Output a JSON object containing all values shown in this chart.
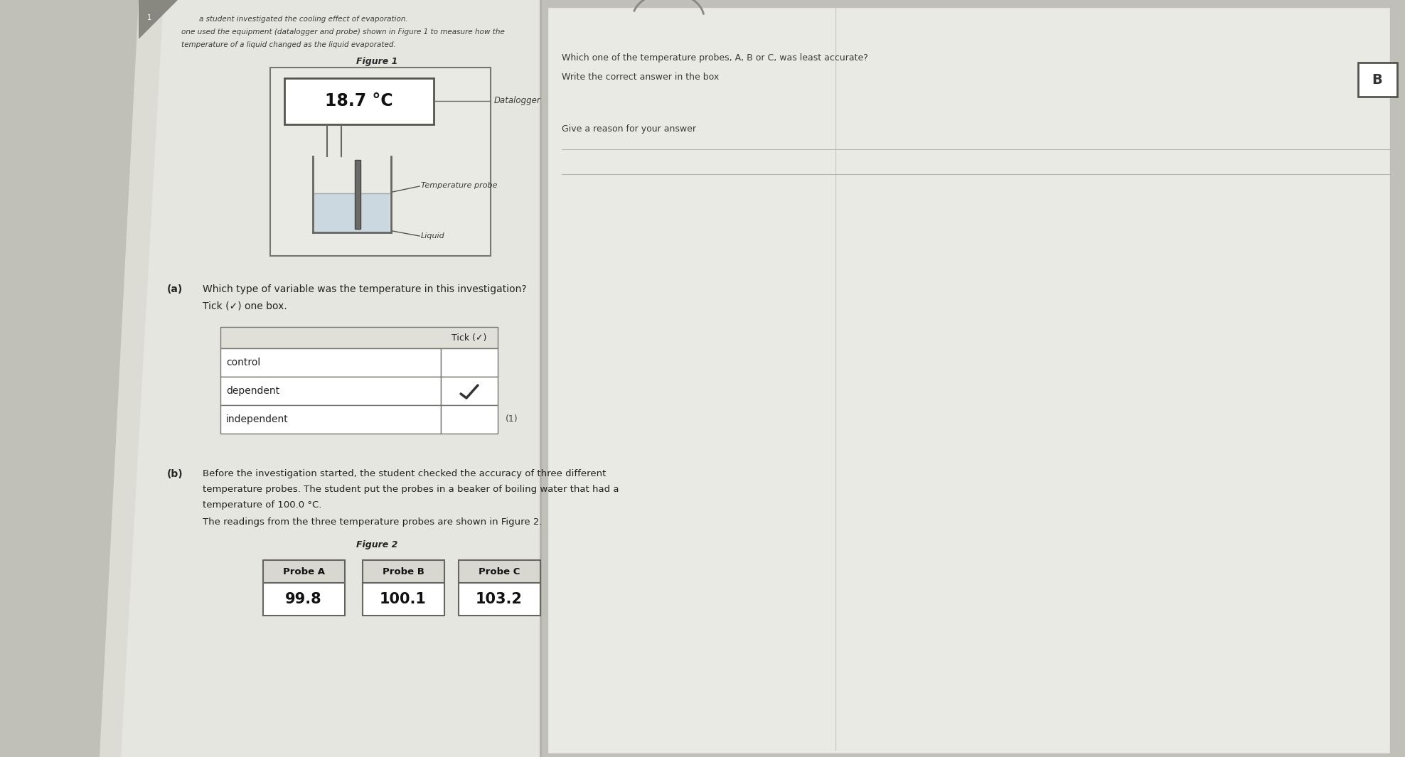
{
  "bg_color": "#c8c8c0",
  "left_bg": "#d8d8d2",
  "right_bg": "#e2e2dc",
  "page_white": "#e8e8e4",
  "header_text1": "a student investigated the cooling effect of evaporation.",
  "header_text2": "one used the equipment (datalogger and probe) shown in Figure 1 to measure how the",
  "header_text3": "temperature of a liquid changed as the liquid evaporated.",
  "figure1_label": "Figure 1",
  "datalogger_display": "18.7 °C",
  "datalogger_label": "Datalogger",
  "temp_probe_label": "Temperature probe",
  "liquid_label": "Liquid",
  "question_a_label": "(a)",
  "question_a_text": "Which type of variable was the temperature in this investigation?",
  "tick_instruction": "Tick (✓) one box.",
  "table_rows": [
    "control",
    "dependent",
    "independent"
  ],
  "table_header": "Tick (✓)",
  "tick_row": "dependent",
  "question_b_label": "(b)",
  "question_b_text1": "Before the investigation started, the student checked the accuracy of three different",
  "question_b_text2": "temperature probes. The student put the probes in a beaker of boiling water that had a",
  "question_b_text3": "temperature of 100.0 °C.",
  "question_b_text4": "The readings from the three temperature probes are shown in Figure 2.",
  "figure2_label": "Figure 2",
  "probe_labels": [
    "Probe A",
    "Probe B",
    "Probe C"
  ],
  "probe_values": [
    "99.8",
    "100.1",
    "103.2"
  ],
  "marks_1": "(1)",
  "right_q1": "Which one of the temperature probes, A, B or C, was least accurate?",
  "right_q1b": "Write the correct answer in the box",
  "right_answer": "B",
  "right_q2": "Give a reason for your answer",
  "text_color": "#444444",
  "line_color": "#888888",
  "border_color": "#666666"
}
